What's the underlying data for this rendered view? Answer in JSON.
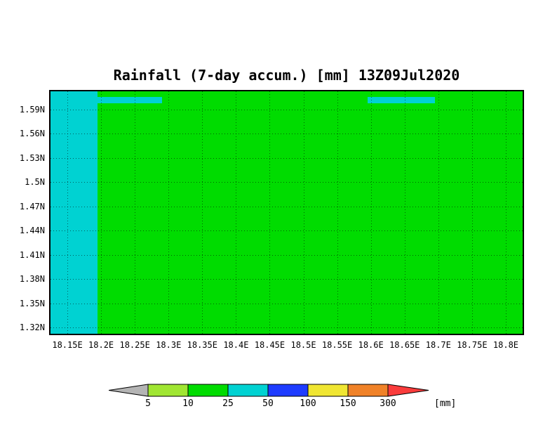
{
  "chart_data": {
    "type": "heatmap",
    "title": "Rainfall (7-day accum.) [mm] 13Z09Jul2020",
    "xlabel": "",
    "ylabel": "",
    "grid": true,
    "lon_range": [
      18.125,
      18.825
    ],
    "lat_range": [
      1.3125,
      1.6125
    ],
    "x_ticks": [
      {
        "value": 18.15,
        "label": "18.15E"
      },
      {
        "value": 18.2,
        "label": "18.2E"
      },
      {
        "value": 18.25,
        "label": "18.25E"
      },
      {
        "value": 18.3,
        "label": "18.3E"
      },
      {
        "value": 18.35,
        "label": "18.35E"
      },
      {
        "value": 18.4,
        "label": "18.4E"
      },
      {
        "value": 18.45,
        "label": "18.45E"
      },
      {
        "value": 18.5,
        "label": "18.5E"
      },
      {
        "value": 18.55,
        "label": "18.55E"
      },
      {
        "value": 18.6,
        "label": "18.6E"
      },
      {
        "value": 18.65,
        "label": "18.65E"
      },
      {
        "value": 18.7,
        "label": "18.7E"
      },
      {
        "value": 18.75,
        "label": "18.75E"
      },
      {
        "value": 18.8,
        "label": "18.8E"
      }
    ],
    "y_ticks": [
      {
        "value": 1.59,
        "label": "1.59N"
      },
      {
        "value": 1.56,
        "label": "1.56N"
      },
      {
        "value": 1.53,
        "label": "1.53N"
      },
      {
        "value": 1.5,
        "label": "1.5N"
      },
      {
        "value": 1.47,
        "label": "1.47N"
      },
      {
        "value": 1.44,
        "label": "1.44N"
      },
      {
        "value": 1.41,
        "label": "1.41N"
      },
      {
        "value": 1.38,
        "label": "1.38N"
      },
      {
        "value": 1.35,
        "label": "1.35N"
      },
      {
        "value": 1.32,
        "label": "1.32N"
      }
    ],
    "colors": {
      "gray": "#b4b4b4",
      "lightgreen": "#a0e632",
      "green": "#00dc00",
      "cyan": "#00d2d2",
      "blue": "#1e3cff",
      "yellow": "#f0e632",
      "orange": "#f08228",
      "red": "#fa3c3c"
    },
    "background_bin_mm": "10-25",
    "patches": [
      {
        "name": "west-band",
        "lon": [
          18.125,
          18.195
        ],
        "lat": [
          1.3125,
          1.6125
        ],
        "bin_mm": "25-50",
        "color_key": "cyan"
      },
      {
        "name": "north-band-west",
        "lon": [
          18.195,
          18.29
        ],
        "lat": [
          1.5975,
          1.6055
        ],
        "bin_mm": "25-50",
        "color_key": "cyan"
      },
      {
        "name": "north-band-east",
        "lon": [
          18.595,
          18.695
        ],
        "lat": [
          1.5975,
          1.6055
        ],
        "bin_mm": "25-50",
        "color_key": "cyan"
      }
    ],
    "colorbar": {
      "unit_label": "[mm]",
      "tick_labels": [
        "5",
        "10",
        "25",
        "50",
        "100",
        "150",
        "300"
      ],
      "segments": [
        {
          "type": "arrow-left",
          "color_key": "gray"
        },
        {
          "type": "box",
          "color_key": "lightgreen"
        },
        {
          "type": "box",
          "color_key": "green"
        },
        {
          "type": "box",
          "color_key": "cyan"
        },
        {
          "type": "box",
          "color_key": "blue"
        },
        {
          "type": "box",
          "color_key": "yellow"
        },
        {
          "type": "box",
          "color_key": "orange"
        },
        {
          "type": "arrow-right",
          "color_key": "red"
        }
      ]
    }
  }
}
